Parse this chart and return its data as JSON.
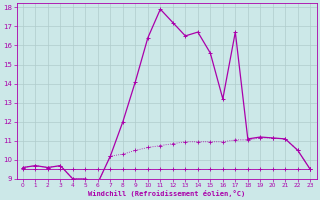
{
  "xlabel": "Windchill (Refroidissement éolien,°C)",
  "background_color": "#cce8e8",
  "grid_color": "#b0cccc",
  "line_color": "#aa00aa",
  "dot_color": "#aa00aa",
  "xlim": [
    -0.5,
    23.5
  ],
  "ylim": [
    9,
    18.2
  ],
  "yticks": [
    9,
    10,
    11,
    12,
    13,
    14,
    15,
    16,
    17,
    18
  ],
  "xticks": [
    0,
    1,
    2,
    3,
    4,
    5,
    6,
    7,
    8,
    9,
    10,
    11,
    12,
    13,
    14,
    15,
    16,
    17,
    18,
    19,
    20,
    21,
    22,
    23
  ],
  "temp_x": [
    0,
    1,
    2,
    3,
    4,
    5,
    6,
    7,
    8,
    9,
    10,
    11,
    12,
    13,
    14,
    15,
    16,
    17,
    18,
    19,
    20,
    21,
    22,
    23
  ],
  "temp_y": [
    9.6,
    9.7,
    9.6,
    9.7,
    9.0,
    9.0,
    8.8,
    10.2,
    12.0,
    14.1,
    16.4,
    17.9,
    17.2,
    16.5,
    16.7,
    15.6,
    13.2,
    16.7,
    11.1,
    11.2,
    11.15,
    11.1,
    10.5,
    9.5
  ],
  "wc_x": [
    0,
    1,
    2,
    3,
    4,
    5,
    6,
    7,
    8,
    9,
    10,
    11,
    12,
    13,
    14,
    15,
    16,
    17,
    18,
    19,
    20,
    21,
    22,
    23
  ],
  "wc_y": [
    9.6,
    9.7,
    9.6,
    9.7,
    9.0,
    9.0,
    8.8,
    10.2,
    10.3,
    10.5,
    10.65,
    10.75,
    10.85,
    10.95,
    10.95,
    10.95,
    10.95,
    11.05,
    11.05,
    11.15,
    11.15,
    11.1,
    10.5,
    9.5
  ],
  "flat_x": [
    0,
    1,
    2,
    3,
    4,
    5,
    6,
    7,
    8,
    9,
    10,
    11,
    12,
    13,
    14,
    15,
    16,
    17,
    18,
    19,
    20,
    21,
    22,
    23
  ],
  "flat_y": [
    9.5,
    9.5,
    9.5,
    9.5,
    9.5,
    9.5,
    9.5,
    9.5,
    9.5,
    9.5,
    9.5,
    9.5,
    9.5,
    9.5,
    9.5,
    9.5,
    9.5,
    9.5,
    9.5,
    9.5,
    9.5,
    9.5,
    9.5,
    9.5
  ]
}
